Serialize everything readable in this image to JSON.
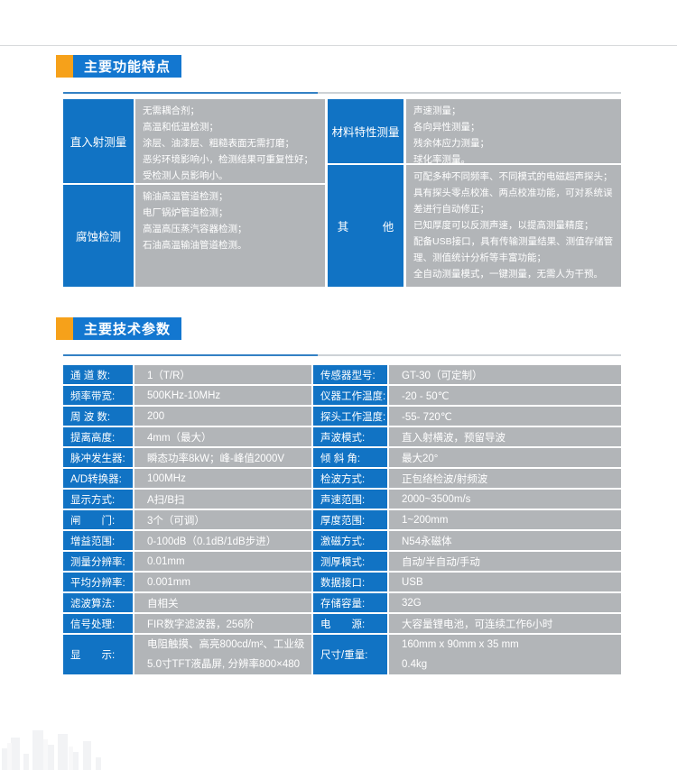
{
  "colors": {
    "accent_orange": "#f6a11a",
    "badge_blue": "#1377d0",
    "label_blue": "#1173c4",
    "cell_gray": "#b2b5b8",
    "divider_blue": "#3381c4",
    "divider_gray": "#cdd2d6"
  },
  "sections": {
    "features_title": "主要功能特点",
    "specs_title": "主要技术参数"
  },
  "features": {
    "left": [
      {
        "label": "直入射测量",
        "items": [
          "无需耦合剂；",
          "高温和低温检测；",
          "涂层、油漆层、粗糙表面无需打磨；",
          "恶劣环境影响小，检测结果可重复性好；",
          "受检测人员影响小。"
        ]
      },
      {
        "label": "腐蚀检测",
        "items": [
          "输油高温管道检测；",
          "电厂锅炉管道检测；",
          "高温高压蒸汽容器检测；",
          "石油高温输油管道检测。"
        ]
      }
    ],
    "right": [
      {
        "label": "材料特性测量",
        "items": [
          "声速测量；",
          "各向异性测量；",
          "残余体应力测量；",
          "球化率测量。"
        ]
      },
      {
        "label": "其　　　他",
        "items": [
          "可配多种不同频率、不同模式的电磁超声探头；",
          "具有探头零点校准、两点校准功能，可对系统误差进行自动修正；",
          "已知厚度可以反测声速，以提高测量精度；",
          "配备USB接口，具有传输测量结果、测值存储管理、测值统计分析等丰富功能；",
          "全自动测量模式，一键测量，无需人为干预。"
        ]
      }
    ]
  },
  "specs": {
    "left": [
      {
        "label": "通 道 数:",
        "value": "1（T/R）"
      },
      {
        "label": "频率带宽:",
        "value": "500KHz-10MHz"
      },
      {
        "label": "周 波 数:",
        "value": "200"
      },
      {
        "label": "提离高度:",
        "value": "4mm（最大）"
      },
      {
        "label": "脉冲发生器:",
        "value": "瞬态功率8kW；峰-峰值2000V"
      },
      {
        "label": "A/D转换器:",
        "value": "100MHz"
      },
      {
        "label": "显示方式:",
        "value": "A扫/B扫"
      },
      {
        "label": "闸　　门:",
        "value": "3个（可调）"
      },
      {
        "label": "增益范围:",
        "value": "0-100dB（0.1dB/1dB步进）"
      },
      {
        "label": "测量分辨率:",
        "value": "0.01mm"
      },
      {
        "label": "平均分辨率:",
        "value": "0.001mm"
      },
      {
        "label": "滤波算法:",
        "value": "自相关"
      },
      {
        "label": "信号处理:",
        "value": "FIR数字滤波器，256阶"
      },
      {
        "label": "显　　示:",
        "value": [
          "电阻触摸、高亮800cd/m²、工业级",
          "5.0寸TFT液晶屏, 分辨率800×480"
        ]
      }
    ],
    "right": [
      {
        "label": "传感器型号:",
        "value": "GT-30（可定制）"
      },
      {
        "label": "仪器工作温度:",
        "value": "-20 - 50℃"
      },
      {
        "label": "探头工作温度:",
        "value": "-55- 720℃"
      },
      {
        "label": "声波模式:",
        "value": "直入射横波，预留导波"
      },
      {
        "label": "倾 斜 角:",
        "value": "最大20°"
      },
      {
        "label": "检波方式:",
        "value": "正包络检波/射频波"
      },
      {
        "label": "声速范围:",
        "value": "2000~3500m/s"
      },
      {
        "label": "厚度范围:",
        "value": "1~200mm"
      },
      {
        "label": "激磁方式:",
        "value": "N54永磁体"
      },
      {
        "label": "测厚模式:",
        "value": "自动/半自动/手动"
      },
      {
        "label": "数据接口:",
        "value": "USB"
      },
      {
        "label": "存储容量:",
        "value": "32G"
      },
      {
        "label": "电　　源:",
        "value": "大容量锂电池，可连续工作6小时"
      },
      {
        "label": "尺寸/重量:",
        "value": [
          "160mm x 90mm x 35 mm",
          "0.4kg"
        ]
      }
    ]
  }
}
